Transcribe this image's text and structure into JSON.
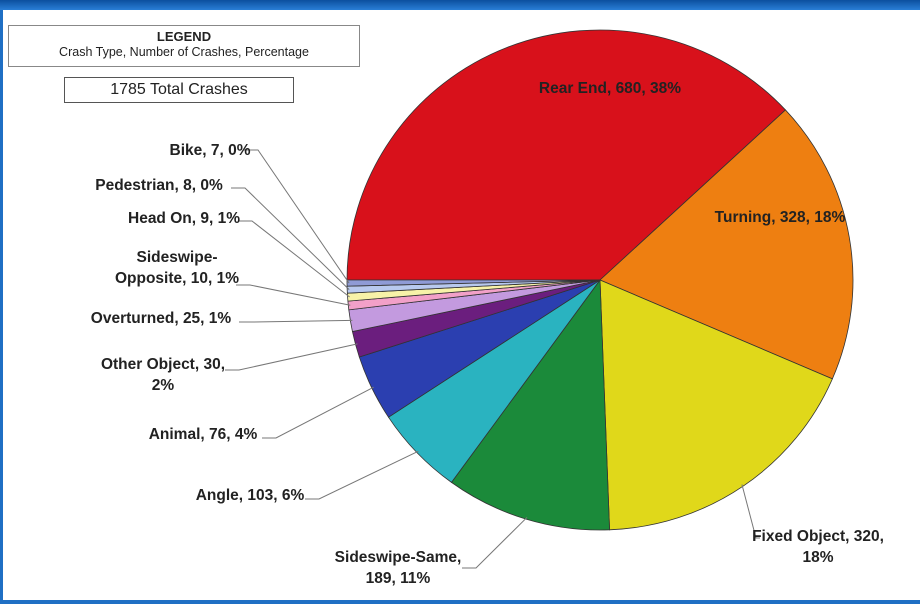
{
  "legend": {
    "title": "LEGEND",
    "subtitle": "Crash Type, Number of Crashes, Percentage"
  },
  "total_label": "1785 Total Crashes",
  "chart_data": {
    "type": "pie",
    "title": "",
    "total": 1785,
    "slices": [
      {
        "name": "Rear End",
        "value": 680,
        "percent": "38%",
        "color": "#d8111b",
        "label_lines": [
          "Rear End, 680, 38%"
        ]
      },
      {
        "name": "Turning",
        "value": 328,
        "percent": "18%",
        "color": "#ee7f11",
        "label_lines": [
          "Turning, 328, 18%"
        ]
      },
      {
        "name": "Fixed Object",
        "value": 320,
        "percent": "18%",
        "color": "#e0d81a",
        "label_lines": [
          "Fixed Object, 320,",
          "18%"
        ]
      },
      {
        "name": "Sideswipe-Same",
        "value": 189,
        "percent": "11%",
        "color": "#1b8a3a",
        "label_lines": [
          "Sideswipe-Same,",
          "189, 11%"
        ]
      },
      {
        "name": "Angle",
        "value": 103,
        "percent": "6%",
        "color": "#2ab3c0",
        "label_lines": [
          "Angle, 103, 6%"
        ]
      },
      {
        "name": "Animal",
        "value": 76,
        "percent": "4%",
        "color": "#2b3fb0",
        "label_lines": [
          "Animal, 76, 4%"
        ]
      },
      {
        "name": "Other Object",
        "value": 30,
        "percent": "2%",
        "color": "#6b1e7e",
        "label_lines": [
          "Other Object, 30,",
          "2%"
        ]
      },
      {
        "name": "Overturned",
        "value": 25,
        "percent": "1%",
        "color": "#c39adf",
        "label_lines": [
          "Overturned, 25, 1%"
        ]
      },
      {
        "name": "Sideswipe-Opposite",
        "value": 10,
        "percent": "1%",
        "color": "#f2a0c8",
        "label_lines": [
          "Sideswipe-",
          "Opposite, 10, 1%"
        ]
      },
      {
        "name": "Head On",
        "value": 9,
        "percent": "1%",
        "color": "#f7f2a8",
        "label_lines": [
          "Head On, 9, 1%"
        ]
      },
      {
        "name": "Pedestrian",
        "value": 8,
        "percent": "0%",
        "color": "#b8c9ef",
        "label_lines": [
          "Pedestrian, 8, 0%"
        ]
      },
      {
        "name": "Bike",
        "value": 7,
        "percent": "0%",
        "color": "#8f9bd6",
        "label_lines": [
          "Bike, 7, 0%"
        ]
      }
    ],
    "legend_position": "top-left"
  }
}
